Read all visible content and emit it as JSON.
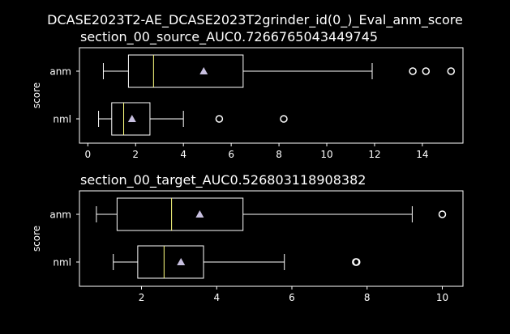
{
  "suptitle": "DCASE2023T2-AE_DCASE2023T2grinder_id(0_)_Eval_anm_score",
  "colors": {
    "background": "#000000",
    "foreground": "#ffffff",
    "median": "#ffff80",
    "mean_marker": "#c8c0e0"
  },
  "chart_data": [
    {
      "type": "box",
      "title": "section_00_source_AUC0.7266765043449745",
      "xlabel": "",
      "ylabel": "score",
      "orientation": "horizontal",
      "xlim": [
        -0.35,
        15.7
      ],
      "xticks": [
        0,
        2,
        4,
        6,
        8,
        10,
        12,
        14
      ],
      "grid": false,
      "series": [
        {
          "name": "anm",
          "whisker_low": 0.65,
          "q1": 1.7,
          "median": 2.75,
          "q3": 6.5,
          "whisker_high": 11.9,
          "mean": 4.85,
          "outliers": [
            13.6,
            14.15,
            15.2
          ]
        },
        {
          "name": "nml",
          "whisker_low": 0.45,
          "q1": 1.0,
          "median": 1.5,
          "q3": 2.6,
          "whisker_high": 4.0,
          "mean": 1.85,
          "outliers": [
            5.5,
            8.2
          ]
        }
      ]
    },
    {
      "type": "box",
      "title": "section_00_target_AUC0.526803118908382",
      "xlabel": "",
      "ylabel": "score",
      "orientation": "horizontal",
      "xlim": [
        0.35,
        10.55
      ],
      "xticks": [
        2,
        4,
        6,
        8,
        10
      ],
      "grid": false,
      "series": [
        {
          "name": "anm",
          "whisker_low": 0.8,
          "q1": 1.35,
          "median": 2.8,
          "q3": 4.7,
          "whisker_high": 9.2,
          "mean": 3.55,
          "outliers": [
            10.0
          ]
        },
        {
          "name": "nml",
          "whisker_low": 1.25,
          "q1": 1.9,
          "median": 2.6,
          "q3": 3.65,
          "whisker_high": 5.8,
          "mean": 3.05,
          "outliers": [
            7.7,
            7.72
          ]
        }
      ]
    }
  ]
}
